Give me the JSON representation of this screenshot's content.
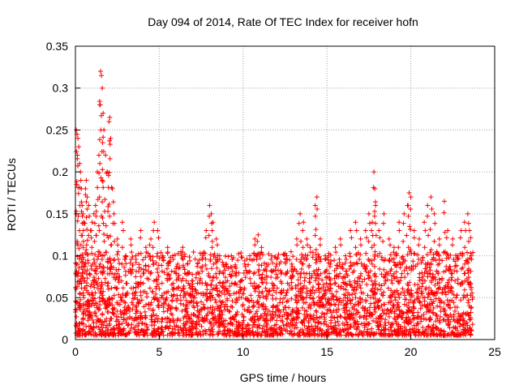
{
  "chart_data": {
    "type": "scatter",
    "title": "Day 094 of 2014, Rate Of TEC Index for receiver hofn",
    "xlabel": "GPS time / hours",
    "ylabel": "ROTI / TECUs",
    "xlim": [
      0,
      25
    ],
    "ylim": [
      0,
      0.35
    ],
    "xticks": [
      0,
      5,
      10,
      15,
      20,
      25
    ],
    "yticks": [
      0,
      0.05,
      0.1,
      0.15,
      0.2,
      0.25,
      0.3,
      0.35
    ],
    "grid": true,
    "marker": "+",
    "color": "#ff0000",
    "series": [
      {
        "points": [
          [
            0.05,
            0.25
          ],
          [
            0.1,
            0.245
          ],
          [
            0.15,
            0.24
          ],
          [
            0.2,
            0.23
          ],
          [
            0.25,
            0.21
          ],
          [
            0.3,
            0.2
          ],
          [
            0.35,
            0.18
          ],
          [
            0.4,
            0.16
          ],
          [
            0.45,
            0.15
          ],
          [
            0.5,
            0.14
          ],
          [
            0.6,
            0.18
          ],
          [
            0.65,
            0.19
          ],
          [
            0.7,
            0.17
          ],
          [
            0.8,
            0.16
          ],
          [
            0.9,
            0.13
          ],
          [
            1.0,
            0.14
          ],
          [
            1.1,
            0.15
          ],
          [
            1.2,
            0.16
          ],
          [
            1.3,
            0.2
          ],
          [
            1.4,
            0.22
          ],
          [
            1.45,
            0.28
          ],
          [
            1.5,
            0.32
          ],
          [
            1.55,
            0.315
          ],
          [
            1.6,
            0.3
          ],
          [
            1.65,
            0.27
          ],
          [
            1.7,
            0.25
          ],
          [
            1.8,
            0.22
          ],
          [
            1.9,
            0.2
          ],
          [
            2.0,
            0.26
          ],
          [
            2.05,
            0.265
          ],
          [
            2.1,
            0.24
          ],
          [
            2.2,
            0.18
          ],
          [
            2.3,
            0.15
          ],
          [
            2.5,
            0.12
          ],
          [
            2.8,
            0.14
          ],
          [
            3.0,
            0.1
          ],
          [
            3.3,
            0.12
          ],
          [
            3.6,
            0.1
          ],
          [
            3.9,
            0.13
          ],
          [
            4.2,
            0.11
          ],
          [
            4.5,
            0.12
          ],
          [
            4.7,
            0.14
          ],
          [
            4.9,
            0.13
          ],
          [
            5.2,
            0.1
          ],
          [
            5.5,
            0.11
          ],
          [
            5.8,
            0.1
          ],
          [
            6.1,
            0.09
          ],
          [
            6.4,
            0.11
          ],
          [
            6.7,
            0.08
          ],
          [
            7.0,
            0.07
          ],
          [
            7.3,
            0.08
          ],
          [
            7.6,
            0.1
          ],
          [
            7.8,
            0.13
          ],
          [
            8.0,
            0.16
          ],
          [
            8.1,
            0.15
          ],
          [
            8.2,
            0.14
          ],
          [
            8.4,
            0.12
          ],
          [
            8.6,
            0.1
          ],
          [
            8.8,
            0.08
          ],
          [
            9.0,
            0.09
          ],
          [
            9.3,
            0.1
          ],
          [
            9.6,
            0.08
          ],
          [
            9.9,
            0.07
          ],
          [
            10.1,
            0.09
          ],
          [
            10.4,
            0.1
          ],
          [
            10.7,
            0.12
          ],
          [
            10.9,
            0.125
          ],
          [
            11.1,
            0.11
          ],
          [
            11.4,
            0.09
          ],
          [
            11.7,
            0.1
          ],
          [
            12.0,
            0.09
          ],
          [
            12.3,
            0.08
          ],
          [
            12.6,
            0.1
          ],
          [
            12.9,
            0.09
          ],
          [
            13.2,
            0.12
          ],
          [
            13.4,
            0.15
          ],
          [
            13.6,
            0.14
          ],
          [
            13.8,
            0.12
          ],
          [
            14.0,
            0.11
          ],
          [
            14.3,
            0.16
          ],
          [
            14.4,
            0.17
          ],
          [
            14.6,
            0.12
          ],
          [
            14.9,
            0.1
          ],
          [
            15.2,
            0.09
          ],
          [
            15.5,
            0.11
          ],
          [
            15.8,
            0.12
          ],
          [
            16.1,
            0.1
          ],
          [
            16.4,
            0.13
          ],
          [
            16.7,
            0.14
          ],
          [
            17.0,
            0.12
          ],
          [
            17.3,
            0.13
          ],
          [
            17.5,
            0.15
          ],
          [
            17.7,
            0.14
          ],
          [
            17.8,
            0.2
          ],
          [
            17.85,
            0.18
          ],
          [
            17.9,
            0.16
          ],
          [
            18.1,
            0.13
          ],
          [
            18.4,
            0.15
          ],
          [
            18.7,
            0.12
          ],
          [
            19.0,
            0.11
          ],
          [
            19.3,
            0.14
          ],
          [
            19.6,
            0.15
          ],
          [
            19.8,
            0.16
          ],
          [
            19.9,
            0.175
          ],
          [
            20.0,
            0.17
          ],
          [
            20.2,
            0.13
          ],
          [
            20.5,
            0.12
          ],
          [
            20.8,
            0.14
          ],
          [
            21.0,
            0.16
          ],
          [
            21.2,
            0.17
          ],
          [
            21.4,
            0.15
          ],
          [
            21.7,
            0.12
          ],
          [
            22.0,
            0.165
          ],
          [
            22.2,
            0.13
          ],
          [
            22.5,
            0.12
          ],
          [
            22.8,
            0.1
          ],
          [
            23.0,
            0.13
          ],
          [
            23.2,
            0.14
          ],
          [
            23.4,
            0.15
          ],
          [
            23.5,
            0.13
          ],
          [
            23.6,
            0.1
          ]
        ],
        "band": {
          "description": "dense cloud of points between 0 and about 0.10 TECU across 0 to 23.7 h",
          "x_range": [
            0,
            23.7
          ],
          "y_range": [
            0,
            0.1
          ]
        }
      }
    ]
  }
}
